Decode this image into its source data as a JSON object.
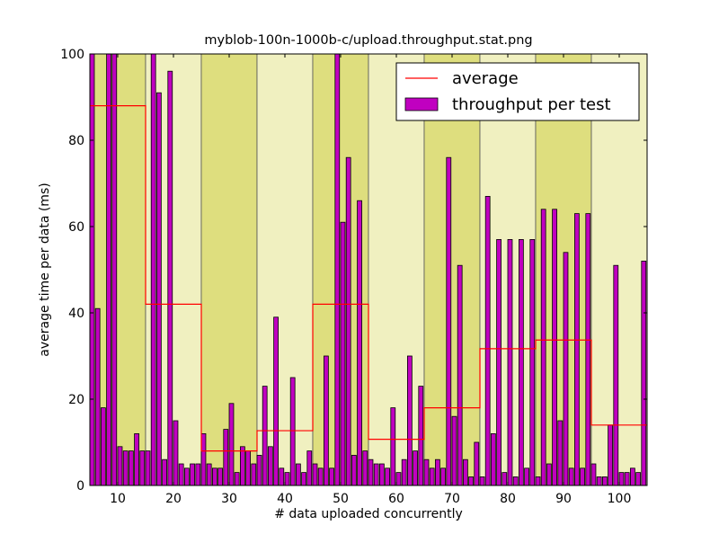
{
  "chart_data": {
    "type": "bar",
    "title": "myblob-100n-1000b-c/upload.throughput.stat.png",
    "xlabel": "# data uploaded concurrently",
    "ylabel": "average time per data (ms)",
    "xlim": [
      5,
      105
    ],
    "ylim": [
      0,
      100
    ],
    "xticks": [
      10,
      20,
      30,
      40,
      50,
      60,
      70,
      80,
      90,
      100
    ],
    "xtick_labels": [
      "10",
      "20",
      "30",
      "40",
      "50",
      "60",
      "70",
      "80",
      "90",
      "100"
    ],
    "yticks": [
      0,
      20,
      40,
      60,
      80,
      100
    ],
    "ytick_labels": [
      "0",
      "20",
      "40",
      "60",
      "80",
      "100"
    ],
    "grid": false,
    "legend_position": "top-right",
    "bands": [
      {
        "x0": 5,
        "x1": 15,
        "color": "#dede7e"
      },
      {
        "x0": 15,
        "x1": 25,
        "color": "#f0f0c0"
      },
      {
        "x0": 25,
        "x1": 35,
        "color": "#dede7e"
      },
      {
        "x0": 35,
        "x1": 45,
        "color": "#f0f0c0"
      },
      {
        "x0": 45,
        "x1": 55,
        "color": "#dede7e"
      },
      {
        "x0": 55,
        "x1": 65,
        "color": "#f0f0c0"
      },
      {
        "x0": 65,
        "x1": 75,
        "color": "#dede7e"
      },
      {
        "x0": 75,
        "x1": 85,
        "color": "#f0f0c0"
      },
      {
        "x0": 85,
        "x1": 95,
        "color": "#dede7e"
      },
      {
        "x0": 95,
        "x1": 105,
        "color": "#f0f0c0"
      }
    ],
    "series": [
      {
        "name": "throughput per test",
        "kind": "bar",
        "color": "#c000c0",
        "x": [
          5,
          6,
          7,
          8,
          9,
          10,
          11,
          12,
          13,
          14,
          15,
          16,
          17,
          18,
          19,
          20,
          21,
          22,
          23,
          24,
          25,
          26,
          27,
          28,
          29,
          30,
          31,
          32,
          33,
          34,
          35,
          36,
          37,
          38,
          39,
          40,
          41,
          42,
          43,
          44,
          45,
          46,
          47,
          48,
          49,
          50,
          51,
          52,
          53,
          54,
          55,
          56,
          57,
          58,
          59,
          60,
          61,
          62,
          63,
          64,
          65,
          66,
          67,
          68,
          69,
          70,
          71,
          72,
          73,
          74,
          75,
          76,
          77,
          78,
          79,
          80,
          81,
          82,
          83,
          84,
          85,
          86,
          87,
          88,
          89,
          90,
          91,
          92,
          93,
          94,
          95,
          96,
          97,
          98,
          99,
          100,
          101,
          102,
          103,
          104
        ],
        "values": [
          100,
          41,
          18,
          100,
          100,
          9,
          8,
          8,
          12,
          8,
          8,
          100,
          91,
          6,
          96,
          15,
          5,
          4,
          5,
          5,
          12,
          5,
          4,
          4,
          13,
          19,
          3,
          9,
          8,
          5,
          7,
          23,
          9,
          39,
          4,
          3,
          25,
          5,
          3,
          8,
          5,
          4,
          30,
          4,
          100,
          61,
          76,
          7,
          66,
          8,
          6,
          5,
          5,
          4,
          18,
          3,
          6,
          30,
          8,
          23,
          6,
          4,
          6,
          4,
          76,
          16,
          51,
          6,
          2,
          10,
          2,
          67,
          12,
          57,
          3,
          57,
          2,
          57,
          4,
          57,
          2,
          64,
          5,
          64,
          15,
          54,
          4,
          63,
          4,
          63,
          5,
          2,
          2,
          14,
          51,
          3,
          3,
          4,
          3,
          52
        ]
      },
      {
        "name": "average",
        "kind": "step",
        "color": "#ff0000",
        "segments": [
          {
            "x0": 5,
            "x1": 15,
            "y": 88
          },
          {
            "x0": 15,
            "x1": 25,
            "y": 42
          },
          {
            "x0": 25,
            "x1": 35,
            "y": 8
          },
          {
            "x0": 35,
            "x1": 45,
            "y": 12.7
          },
          {
            "x0": 45,
            "x1": 55,
            "y": 42
          },
          {
            "x0": 55,
            "x1": 65,
            "y": 10.7
          },
          {
            "x0": 65,
            "x1": 75,
            "y": 18
          },
          {
            "x0": 75,
            "x1": 85,
            "y": 31.7
          },
          {
            "x0": 85,
            "x1": 95,
            "y": 33.7
          },
          {
            "x0": 95,
            "x1": 105,
            "y": 14
          }
        ]
      }
    ],
    "legend": [
      {
        "label": "average",
        "kind": "line",
        "color": "#ff0000"
      },
      {
        "label": "throughput per test",
        "kind": "patch",
        "color": "#c000c0"
      }
    ]
  }
}
